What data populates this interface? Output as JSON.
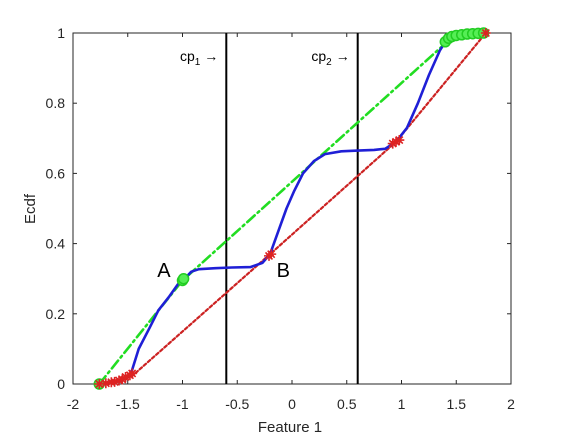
{
  "chart_data": {
    "type": "line",
    "xlabel": "Feature 1",
    "ylabel": "Ecdf",
    "xlim": [
      -2,
      2
    ],
    "ylim": [
      0,
      1
    ],
    "x_ticks": [
      "-2",
      "-1.5",
      "-1",
      "-0.5",
      "0",
      "0.5",
      "1",
      "1.5",
      "2"
    ],
    "y_ticks": [
      "0",
      "0.2",
      "0.4",
      "0.6",
      "0.8",
      "1"
    ],
    "grid": false,
    "series": [
      {
        "color": "#1f1fd6",
        "style": "solid",
        "points": [
          [
            -1.76,
            0.0
          ],
          [
            -1.62,
            0.005
          ],
          [
            -1.55,
            0.01
          ],
          [
            -1.47,
            0.03
          ],
          [
            -1.4,
            0.1
          ],
          [
            -1.3,
            0.16
          ],
          [
            -1.22,
            0.21
          ],
          [
            -1.12,
            0.25
          ],
          [
            -1.04,
            0.285
          ],
          [
            -0.98,
            0.3
          ],
          [
            -0.92,
            0.32
          ],
          [
            -0.85,
            0.327
          ],
          [
            -0.7,
            0.33
          ],
          [
            -0.55,
            0.332
          ],
          [
            -0.38,
            0.333
          ],
          [
            -0.27,
            0.345
          ],
          [
            -0.2,
            0.37
          ],
          [
            -0.12,
            0.44
          ],
          [
            -0.05,
            0.5
          ],
          [
            0.02,
            0.55
          ],
          [
            0.1,
            0.6
          ],
          [
            0.2,
            0.635
          ],
          [
            0.3,
            0.655
          ],
          [
            0.45,
            0.663
          ],
          [
            0.6,
            0.665
          ],
          [
            0.75,
            0.667
          ],
          [
            0.85,
            0.67
          ],
          [
            0.95,
            0.69
          ],
          [
            1.05,
            0.73
          ],
          [
            1.15,
            0.8
          ],
          [
            1.25,
            0.88
          ],
          [
            1.35,
            0.95
          ],
          [
            1.42,
            0.985
          ],
          [
            1.55,
            0.995
          ],
          [
            1.7,
            1.0
          ],
          [
            1.77,
            1.0
          ]
        ]
      },
      {
        "color": "#22dd22",
        "style": "dash-dot",
        "points": [
          [
            -1.76,
            0.0
          ],
          [
            -1.0,
            0.295
          ],
          [
            1.4,
            0.97
          ],
          [
            1.47,
            0.985
          ],
          [
            1.6,
            0.995
          ],
          [
            1.77,
            1.0
          ]
        ]
      },
      {
        "color": "#cc2222",
        "style": "dotted",
        "points": [
          [
            -1.76,
            0.0
          ],
          [
            -1.47,
            0.02
          ],
          [
            -0.2,
            0.37
          ],
          [
            0.95,
            0.69
          ],
          [
            1.77,
            1.0
          ]
        ]
      }
    ],
    "green_markers": [
      [
        -1.76,
        0.0
      ],
      [
        -1.0,
        0.295
      ],
      [
        -0.99,
        0.3
      ],
      [
        1.4,
        0.975
      ],
      [
        1.43,
        0.985
      ],
      [
        1.46,
        0.99
      ],
      [
        1.5,
        0.993
      ],
      [
        1.55,
        0.995
      ],
      [
        1.6,
        0.997
      ],
      [
        1.65,
        0.998
      ],
      [
        1.7,
        0.999
      ],
      [
        1.75,
        1.0
      ]
    ],
    "red_markers": [
      [
        -1.76,
        0.0
      ],
      [
        -1.7,
        0.002
      ],
      [
        -1.65,
        0.005
      ],
      [
        -1.62,
        0.006
      ],
      [
        -1.58,
        0.01
      ],
      [
        -1.55,
        0.013
      ],
      [
        -1.52,
        0.02
      ],
      [
        -1.48,
        0.025
      ],
      [
        -1.46,
        0.03
      ],
      [
        -0.21,
        0.365
      ],
      [
        -0.19,
        0.37
      ],
      [
        0.92,
        0.685
      ],
      [
        0.95,
        0.69
      ],
      [
        0.98,
        0.695
      ],
      [
        1.77,
        1.0
      ]
    ],
    "vertical_lines": [
      {
        "x": -0.6,
        "label_main": "cp",
        "label_sub": "1",
        "arrow": "→"
      },
      {
        "x": 0.6,
        "label_main": "cp",
        "label_sub": "2",
        "arrow": "→"
      }
    ],
    "point_labels": [
      {
        "text": "A",
        "x": -1.17,
        "y": 0.305
      },
      {
        "text": "B",
        "x": -0.08,
        "y": 0.305
      }
    ]
  }
}
